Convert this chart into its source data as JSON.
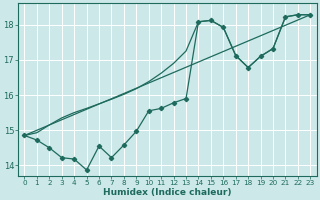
{
  "xlabel": "Humidex (Indice chaleur)",
  "background_color": "#cce8e8",
  "grid_color": "#b0d4d4",
  "line_color": "#1e6b5e",
  "xlim": [
    -0.5,
    23.5
  ],
  "ylim": [
    13.7,
    18.6
  ],
  "yticks": [
    14,
    15,
    16,
    17,
    18
  ],
  "xticks": [
    0,
    1,
    2,
    3,
    4,
    5,
    6,
    7,
    8,
    9,
    10,
    11,
    12,
    13,
    14,
    15,
    16,
    17,
    18,
    19,
    20,
    21,
    22,
    23
  ],
  "line1_x": [
    0,
    1,
    2,
    3,
    4,
    5,
    6,
    7,
    8,
    9,
    10,
    11,
    12,
    13,
    14,
    15,
    16,
    17,
    18,
    19,
    20,
    21,
    22,
    23
  ],
  "line1_y": [
    14.85,
    14.72,
    14.5,
    14.22,
    14.18,
    13.87,
    14.55,
    14.22,
    14.58,
    14.97,
    15.55,
    15.62,
    15.78,
    15.9,
    18.08,
    18.12,
    17.92,
    17.12,
    16.78,
    17.1,
    17.32,
    18.22,
    18.28,
    18.28
  ],
  "line2_x": [
    0,
    23
  ],
  "line2_y": [
    14.85,
    18.28
  ],
  "line3_x": [
    0,
    1,
    2,
    3,
    4,
    5,
    6,
    7,
    8,
    9,
    10,
    11,
    12,
    13,
    14,
    15,
    16,
    17,
    18,
    19,
    20,
    21,
    22,
    23
  ],
  "line3_y": [
    14.85,
    14.93,
    15.15,
    15.35,
    15.5,
    15.62,
    15.75,
    15.88,
    16.02,
    16.18,
    16.38,
    16.62,
    16.9,
    17.25,
    18.08,
    18.12,
    17.92,
    17.12,
    16.78,
    17.1,
    17.32,
    18.22,
    18.28,
    18.28
  ]
}
